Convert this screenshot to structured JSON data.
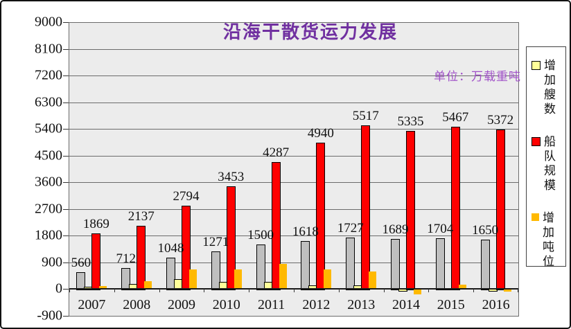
{
  "title": "沿海干散货运力发展",
  "unit_label": "单位：万载重吨",
  "colors": {
    "title": "#7030A0",
    "unit_label": "#A050C8",
    "plot_background": "#ECECEC",
    "gridline": "#6B6B6B",
    "axis": "#1A1A1A",
    "bar_gray": "#BFBFBF",
    "bar_pale_yellow": "#FFFF99",
    "bar_red": "#FF0000",
    "bar_orange": "#FFB900"
  },
  "chart_data": {
    "type": "bar",
    "title": "沿海干散货运力发展",
    "unit_note": "单位：万载重吨",
    "categories": [
      "2007",
      "2008",
      "2009",
      "2010",
      "2011",
      "2012",
      "2013",
      "2014",
      "2015",
      "2016"
    ],
    "y_axis": {
      "min": -900,
      "max": 9000,
      "step": 900,
      "tick_labels": [
        "9000",
        "8100",
        "7200",
        "6300",
        "5400",
        "4500",
        "3600",
        "2700",
        "1800",
        "900",
        "0",
        "-900"
      ]
    },
    "grid": true,
    "legend_position": "right",
    "series": [
      {
        "name": "",
        "in_legend": false,
        "color": "#BFBFBF",
        "outlined": true,
        "data_labels": true,
        "values": [
          560,
          712,
          1048,
          1271,
          1500,
          1618,
          1727,
          1689,
          1704,
          1650
        ]
      },
      {
        "name": "增加艘数",
        "in_legend": true,
        "color": "#FFFF99",
        "outlined": true,
        "data_labels": false,
        "values": [
          60,
          152,
          336,
          223,
          229,
          118,
          109,
          -38,
          15,
          -54
        ]
      },
      {
        "name": "船队规模",
        "in_legend": true,
        "color": "#FF0000",
        "outlined": true,
        "data_labels": true,
        "values": [
          1869,
          2137,
          2794,
          3453,
          4287,
          4940,
          5517,
          5335,
          5467,
          5372
        ]
      },
      {
        "name": "增加吨位",
        "in_legend": true,
        "color": "#FFB900",
        "outlined": false,
        "data_labels": false,
        "values": [
          95,
          268,
          657,
          659,
          834,
          653,
          577,
          -182,
          132,
          -95
        ]
      }
    ]
  }
}
